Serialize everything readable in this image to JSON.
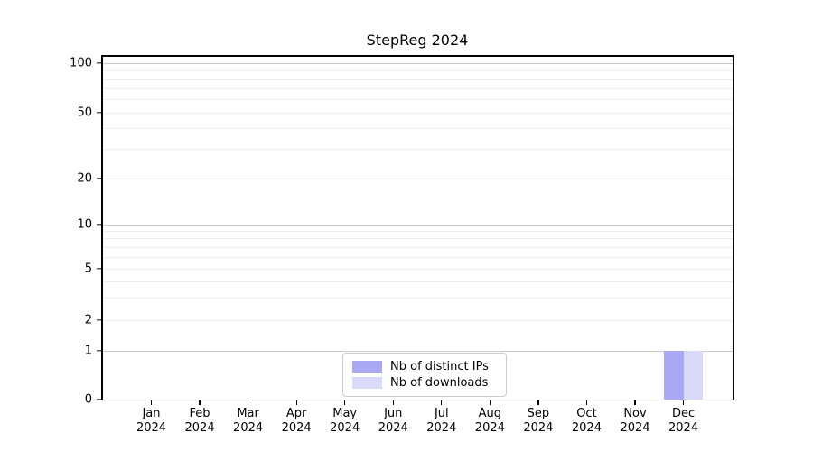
{
  "chart_data": {
    "type": "bar",
    "title": "StepReg 2024",
    "x_axis": {
      "months": [
        "Jan",
        "Feb",
        "Mar",
        "Apr",
        "May",
        "Jun",
        "Jul",
        "Aug",
        "Sep",
        "Oct",
        "Nov",
        "Dec"
      ],
      "year": "2024"
    },
    "y_axis": {
      "scale": "symlog",
      "tick_values": [
        0,
        1,
        2,
        5,
        10,
        20,
        50,
        100
      ],
      "major_gridlines": [
        1,
        10,
        100
      ],
      "minor_gridlines": [
        2,
        3,
        4,
        5,
        6,
        7,
        8,
        9,
        20,
        30,
        40,
        50,
        60,
        70,
        80,
        90
      ],
      "range": [
        0,
        110
      ]
    },
    "series": [
      {
        "name": "Nb of distinct IPs",
        "color": "#a8a8f4",
        "values": [
          0,
          0,
          0,
          0,
          0,
          0,
          0,
          0,
          0,
          0,
          0,
          1
        ]
      },
      {
        "name": "Nb of downloads",
        "color": "#d9d9f9",
        "values": [
          0,
          0,
          0,
          0,
          0,
          0,
          0,
          0,
          0,
          0,
          0,
          1
        ]
      }
    ],
    "legend": {
      "position": "lower center"
    },
    "grid": true
  }
}
